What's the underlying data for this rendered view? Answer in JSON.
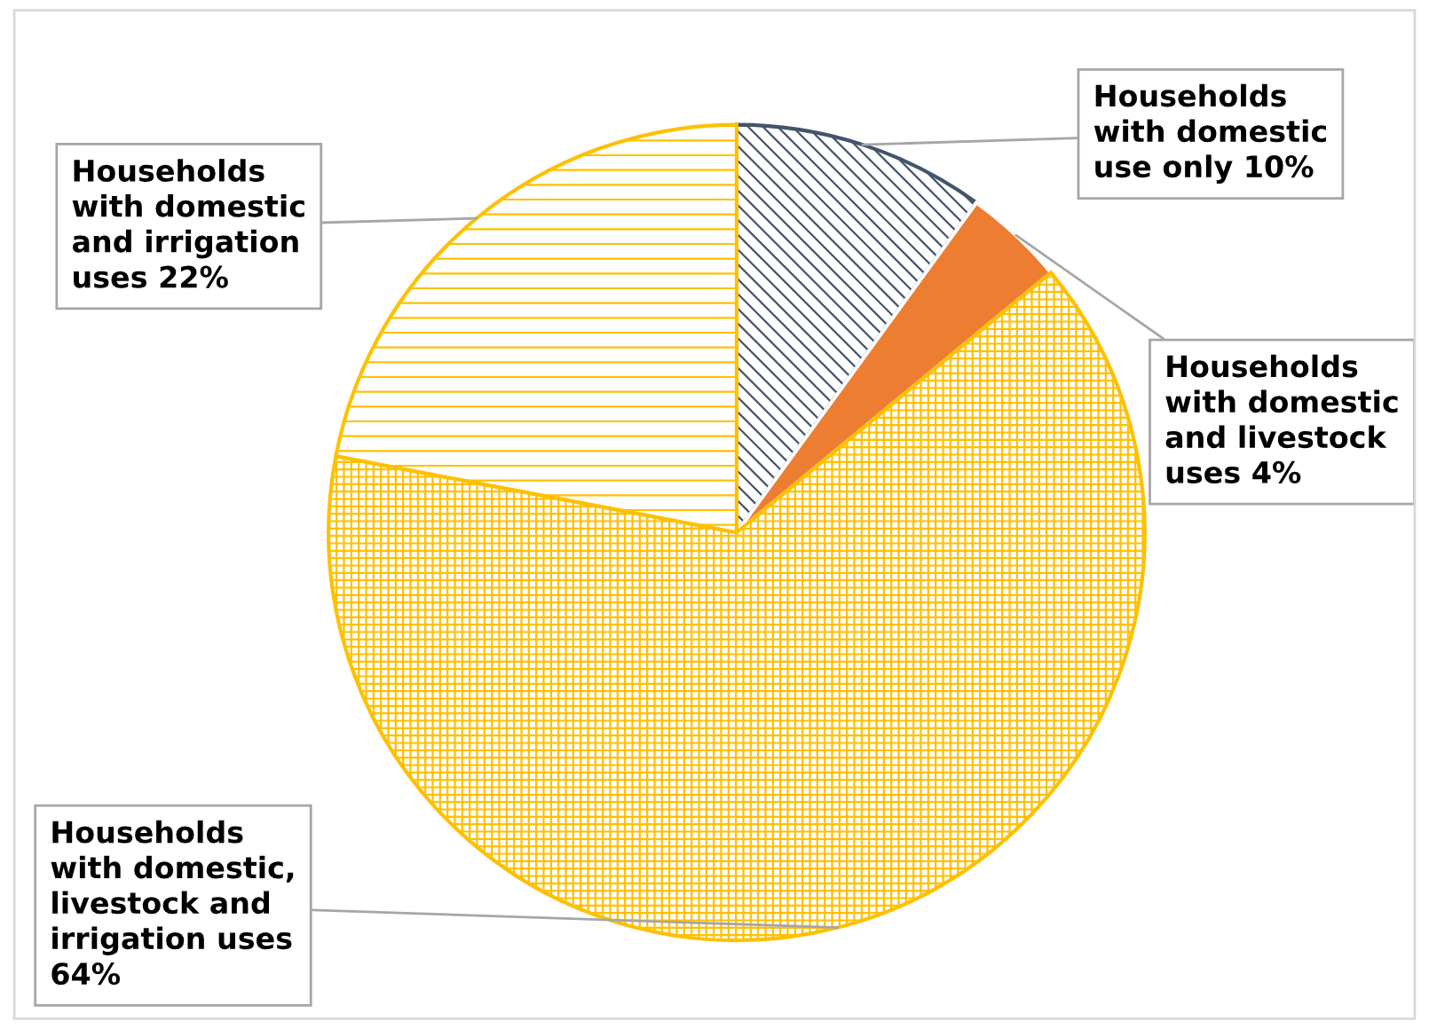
{
  "chart_data": {
    "type": "pie",
    "categories": [
      "Households\nwith domestic\nuse only",
      "Households\nwith domestic\nand livestock\nuses",
      "Households\nwith domestic,\nlivestock and\nirrigation uses",
      "Households\nwith domestic\nand irrigation\nuses"
    ],
    "values": [
      10,
      4,
      64,
      22
    ],
    "value_labels": [
      "10%",
      "4%",
      "64%",
      "22%"
    ],
    "colors": [
      "#44546a",
      "#ed7d31",
      "#ffc000",
      "#ffc000"
    ],
    "legend": false
  }
}
